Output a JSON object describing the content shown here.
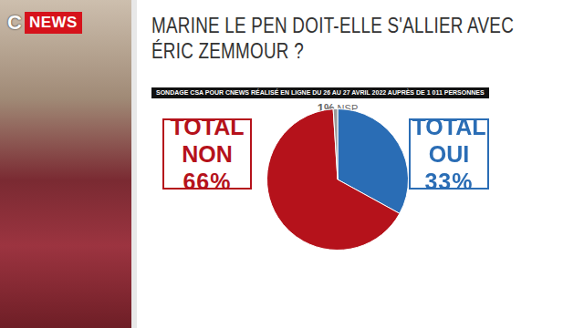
{
  "brand": {
    "mark": "C",
    "name": "NEWS"
  },
  "chart_data": {
    "type": "pie",
    "title": "MARINE LE PEN DOIT-ELLE S'ALLIER AVEC ÉRIC ZEMMOUR ?",
    "subtitle": "SONDAGE CSA POUR CNEWS RÉALISÉ EN LIGNE DU 26 AU 27 AVRIL 2022 AUPRÈS DE 1 011 PERSONNES",
    "categories": [
      "TOTAL OUI",
      "TOTAL NON",
      "NSP"
    ],
    "values": [
      33,
      66,
      1
    ],
    "value_labels": [
      "33%",
      "66%",
      "1%"
    ],
    "colors": [
      "#2a6db5",
      "#b5121b",
      "#9a9a9a"
    ],
    "data_labels": true,
    "legend": false
  }
}
